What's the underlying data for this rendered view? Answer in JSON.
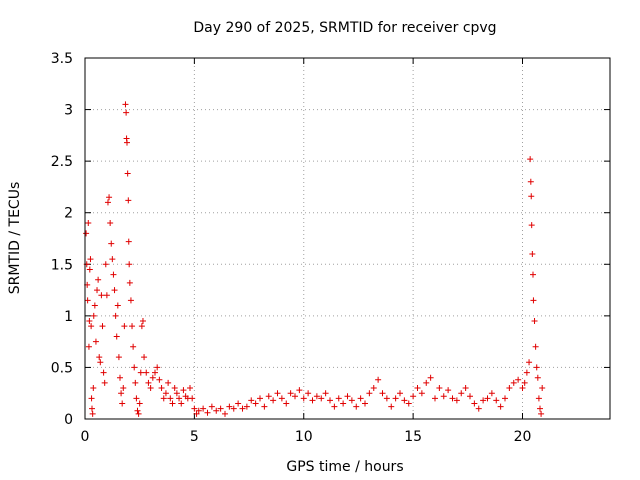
{
  "chart_data": {
    "type": "scatter",
    "title": "Day 290 of 2025, SRMTID for receiver cpvg",
    "xlabel": "GPS time / hours",
    "ylabel": "SRMTID / TECUs",
    "xlim": [
      0,
      24
    ],
    "ylim": [
      0,
      3.5
    ],
    "x_ticks": [
      0,
      5,
      10,
      15,
      20
    ],
    "x_tick_labels": [
      "0",
      "5",
      "10",
      "15",
      "20"
    ],
    "y_ticks": [
      0,
      0.5,
      1,
      1.5,
      2,
      2.5,
      3,
      3.5
    ],
    "y_tick_labels": [
      "0",
      "0.5",
      "1",
      "1.5",
      "2",
      "2.5",
      "3",
      "3.5"
    ],
    "grid": true,
    "marker": "+",
    "series_color": "#e00000",
    "series": [
      {
        "name": "cpvg",
        "points": [
          [
            0.05,
            1.8
          ],
          [
            0.08,
            1.5
          ],
          [
            0.1,
            1.3
          ],
          [
            0.12,
            1.15
          ],
          [
            0.15,
            1.9
          ],
          [
            0.18,
            0.7
          ],
          [
            0.2,
            0.95
          ],
          [
            0.22,
            1.45
          ],
          [
            0.25,
            1.55
          ],
          [
            0.28,
            0.9
          ],
          [
            0.3,
            0.2
          ],
          [
            0.32,
            0.1
          ],
          [
            0.35,
            0.05
          ],
          [
            0.38,
            0.3
          ],
          [
            0.4,
            1.0
          ],
          [
            0.45,
            1.1
          ],
          [
            0.5,
            0.75
          ],
          [
            0.55,
            1.25
          ],
          [
            0.6,
            1.35
          ],
          [
            0.65,
            0.6
          ],
          [
            0.7,
            0.55
          ],
          [
            0.75,
            1.2
          ],
          [
            0.8,
            0.9
          ],
          [
            0.85,
            0.45
          ],
          [
            0.9,
            0.35
          ],
          [
            0.95,
            1.5
          ],
          [
            1.0,
            1.2
          ],
          [
            1.05,
            2.1
          ],
          [
            1.1,
            2.15
          ],
          [
            1.15,
            1.9
          ],
          [
            1.2,
            1.7
          ],
          [
            1.25,
            1.55
          ],
          [
            1.3,
            1.4
          ],
          [
            1.35,
            1.25
          ],
          [
            1.4,
            1.0
          ],
          [
            1.45,
            0.8
          ],
          [
            1.5,
            1.1
          ],
          [
            1.55,
            0.6
          ],
          [
            1.6,
            0.4
          ],
          [
            1.65,
            0.25
          ],
          [
            1.7,
            0.15
          ],
          [
            1.75,
            0.3
          ],
          [
            1.8,
            0.9
          ],
          [
            1.85,
            3.05
          ],
          [
            1.88,
            2.97
          ],
          [
            1.9,
            2.72
          ],
          [
            1.92,
            2.68
          ],
          [
            1.95,
            2.38
          ],
          [
            1.98,
            2.12
          ],
          [
            2.0,
            1.72
          ],
          [
            2.02,
            1.5
          ],
          [
            2.05,
            1.32
          ],
          [
            2.1,
            1.15
          ],
          [
            2.15,
            0.9
          ],
          [
            2.2,
            0.7
          ],
          [
            2.25,
            0.5
          ],
          [
            2.3,
            0.35
          ],
          [
            2.35,
            0.2
          ],
          [
            2.4,
            0.08
          ],
          [
            2.45,
            0.05
          ],
          [
            2.5,
            0.15
          ],
          [
            2.55,
            0.45
          ],
          [
            2.6,
            0.9
          ],
          [
            2.65,
            0.95
          ],
          [
            2.7,
            0.6
          ],
          [
            2.8,
            0.45
          ],
          [
            2.9,
            0.35
          ],
          [
            3.0,
            0.3
          ],
          [
            3.1,
            0.4
          ],
          [
            3.2,
            0.45
          ],
          [
            3.3,
            0.5
          ],
          [
            3.4,
            0.38
          ],
          [
            3.5,
            0.3
          ],
          [
            3.6,
            0.2
          ],
          [
            3.7,
            0.25
          ],
          [
            3.8,
            0.35
          ],
          [
            3.9,
            0.2
          ],
          [
            4.0,
            0.15
          ],
          [
            4.1,
            0.3
          ],
          [
            4.2,
            0.25
          ],
          [
            4.3,
            0.2
          ],
          [
            4.4,
            0.15
          ],
          [
            4.5,
            0.28
          ],
          [
            4.6,
            0.22
          ],
          [
            4.7,
            0.2
          ],
          [
            4.8,
            0.3
          ],
          [
            4.9,
            0.2
          ],
          [
            5.0,
            0.1
          ],
          [
            5.1,
            0.05
          ],
          [
            5.2,
            0.08
          ],
          [
            5.4,
            0.1
          ],
          [
            5.6,
            0.06
          ],
          [
            5.8,
            0.12
          ],
          [
            6.0,
            0.08
          ],
          [
            6.2,
            0.1
          ],
          [
            6.4,
            0.05
          ],
          [
            6.6,
            0.12
          ],
          [
            6.8,
            0.1
          ],
          [
            7.0,
            0.15
          ],
          [
            7.2,
            0.1
          ],
          [
            7.4,
            0.12
          ],
          [
            7.6,
            0.18
          ],
          [
            7.8,
            0.15
          ],
          [
            8.0,
            0.2
          ],
          [
            8.2,
            0.12
          ],
          [
            8.4,
            0.22
          ],
          [
            8.6,
            0.18
          ],
          [
            8.8,
            0.25
          ],
          [
            9.0,
            0.2
          ],
          [
            9.2,
            0.15
          ],
          [
            9.4,
            0.25
          ],
          [
            9.6,
            0.22
          ],
          [
            9.8,
            0.28
          ],
          [
            10.0,
            0.2
          ],
          [
            10.2,
            0.25
          ],
          [
            10.4,
            0.18
          ],
          [
            10.6,
            0.22
          ],
          [
            10.8,
            0.2
          ],
          [
            11.0,
            0.25
          ],
          [
            11.2,
            0.18
          ],
          [
            11.4,
            0.12
          ],
          [
            11.6,
            0.2
          ],
          [
            11.8,
            0.15
          ],
          [
            12.0,
            0.22
          ],
          [
            12.2,
            0.18
          ],
          [
            12.4,
            0.12
          ],
          [
            12.6,
            0.2
          ],
          [
            12.8,
            0.15
          ],
          [
            13.0,
            0.25
          ],
          [
            13.2,
            0.3
          ],
          [
            13.4,
            0.38
          ],
          [
            13.6,
            0.25
          ],
          [
            13.8,
            0.2
          ],
          [
            14.0,
            0.12
          ],
          [
            14.2,
            0.2
          ],
          [
            14.4,
            0.25
          ],
          [
            14.6,
            0.18
          ],
          [
            14.8,
            0.15
          ],
          [
            15.0,
            0.22
          ],
          [
            15.2,
            0.3
          ],
          [
            15.4,
            0.25
          ],
          [
            15.6,
            0.35
          ],
          [
            15.8,
            0.4
          ],
          [
            16.0,
            0.2
          ],
          [
            16.2,
            0.3
          ],
          [
            16.4,
            0.22
          ],
          [
            16.6,
            0.28
          ],
          [
            16.8,
            0.2
          ],
          [
            17.0,
            0.18
          ],
          [
            17.2,
            0.25
          ],
          [
            17.4,
            0.3
          ],
          [
            17.6,
            0.22
          ],
          [
            17.8,
            0.15
          ],
          [
            18.0,
            0.1
          ],
          [
            18.2,
            0.18
          ],
          [
            18.4,
            0.2
          ],
          [
            18.6,
            0.25
          ],
          [
            18.8,
            0.18
          ],
          [
            19.0,
            0.12
          ],
          [
            19.2,
            0.2
          ],
          [
            19.4,
            0.3
          ],
          [
            19.6,
            0.35
          ],
          [
            19.8,
            0.38
          ],
          [
            20.0,
            0.3
          ],
          [
            20.1,
            0.35
          ],
          [
            20.2,
            0.45
          ],
          [
            20.3,
            0.55
          ],
          [
            20.35,
            2.52
          ],
          [
            20.38,
            2.3
          ],
          [
            20.4,
            2.16
          ],
          [
            20.42,
            1.88
          ],
          [
            20.45,
            1.6
          ],
          [
            20.48,
            1.4
          ],
          [
            20.5,
            1.15
          ],
          [
            20.55,
            0.95
          ],
          [
            20.6,
            0.7
          ],
          [
            20.65,
            0.5
          ],
          [
            20.7,
            0.4
          ],
          [
            20.75,
            0.2
          ],
          [
            20.8,
            0.1
          ],
          [
            20.85,
            0.05
          ],
          [
            20.9,
            0.3
          ]
        ]
      }
    ]
  }
}
